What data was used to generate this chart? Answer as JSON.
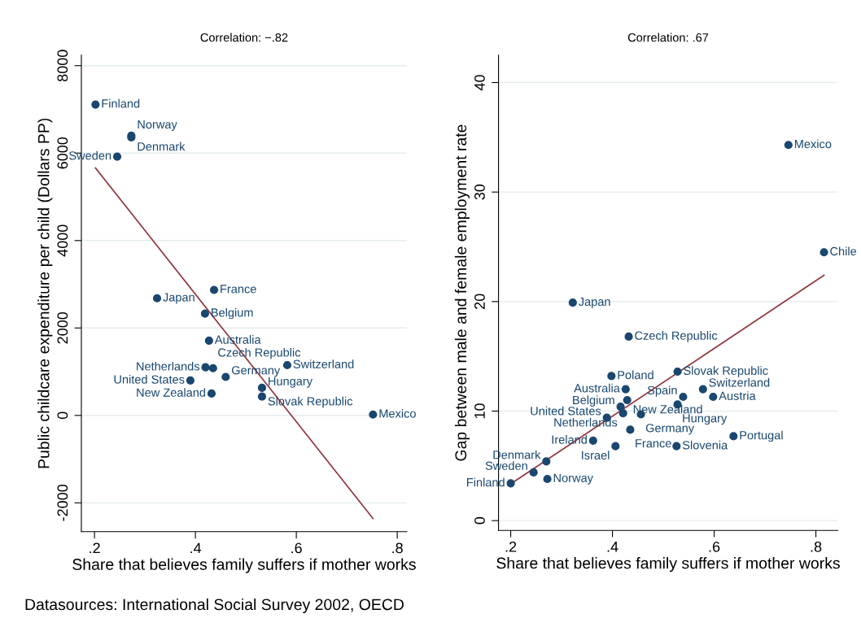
{
  "chart_data": [
    {
      "type": "scatter",
      "title": "Correlation: −.82",
      "xlabel": "Share that believes family suffers if mother works",
      "ylabel": "Public childcare expenditure per child (Dollars PP)",
      "xlim": [
        0.174,
        0.819
      ],
      "ylim": [
        -2660,
        8240
      ],
      "xticks": [
        {
          "value": 0.2,
          "label": ".2"
        },
        {
          "value": 0.4,
          "label": ".4"
        },
        {
          "value": 0.6,
          "label": ".6"
        },
        {
          "value": 0.8,
          "label": ".8"
        }
      ],
      "yticks": [
        -2000,
        0,
        2000,
        4000,
        6000,
        8000
      ],
      "grid": "y",
      "legend": false,
      "annotations": [
        "Datasources: International Social Survey 2002, OECD"
      ],
      "series": [
        {
          "marker": "circle",
          "color": "#1a476f",
          "x": [
            0.202,
            0.273,
            0.273,
            0.245,
            0.324,
            0.437,
            0.419,
            0.427,
            0.42,
            0.435,
            0.582,
            0.39,
            0.46,
            0.532,
            0.532,
            0.432,
            0.752
          ],
          "values": [
            7110,
            6400,
            6360,
            5920,
            2680,
            2870,
            2330,
            1710,
            1100,
            1080,
            1150,
            800,
            880,
            630,
            430,
            500,
            20
          ],
          "value_labels": [
            "Finland",
            "Norway",
            "Denmark",
            "Sweden",
            "Japan",
            "France",
            "Belgium",
            "Australia",
            "Netherlands",
            "Czech Republic",
            "Switzerland",
            "United States",
            "Germany",
            "Hungary",
            "Slovak Republic",
            "New Zealand",
            "Mexico"
          ]
        },
        {
          "type": "line",
          "color": "#90353b",
          "x": [
            0.202,
            0.752
          ],
          "values": [
            5660,
            -2360
          ]
        }
      ]
    },
    {
      "type": "scatter",
      "title": "Correlation: .67",
      "xlabel": "Share that believes family suffers if mother works",
      "ylabel": "Gap between male and female employment rate",
      "xlim": [
        0.176,
        0.843
      ],
      "ylim": [
        -0.9,
        42.5
      ],
      "xticks": [
        {
          "value": 0.2,
          "label": ".2"
        },
        {
          "value": 0.4,
          "label": ".4"
        },
        {
          "value": 0.6,
          "label": ".6"
        },
        {
          "value": 0.8,
          "label": ".8"
        }
      ],
      "yticks": [
        0,
        10,
        20,
        30,
        40
      ],
      "grid": "y",
      "legend": false,
      "series": [
        {
          "marker": "circle",
          "color": "#1a476f",
          "x": [
            0.746,
            0.816,
            0.322,
            0.432,
            0.528,
            0.398,
            0.578,
            0.426,
            0.539,
            0.598,
            0.429,
            0.528,
            0.416,
            0.421,
            0.456,
            0.389,
            0.435,
            0.362,
            0.406,
            0.526,
            0.638,
            0.27,
            0.245,
            0.272,
            0.2
          ],
          "values": [
            34.3,
            24.5,
            19.9,
            16.8,
            13.6,
            13.2,
            12.0,
            12.0,
            11.3,
            11.3,
            11.0,
            10.6,
            10.4,
            9.8,
            9.7,
            9.4,
            8.3,
            7.3,
            6.8,
            6.8,
            7.7,
            5.4,
            4.4,
            3.8,
            3.4
          ],
          "value_labels": [
            "Mexico",
            "Chile",
            "Japan",
            "Czech Republic",
            "Slovak Republic",
            "Poland",
            "Switzerland",
            "Australia",
            "Spain",
            "Austria",
            "New Zealand",
            "Hungary",
            "Belgium",
            "Netherlands",
            "Germany",
            "United States",
            "France",
            "Ireland",
            "Israel",
            "Slovenia",
            "Portugal",
            "Denmark",
            "Sweden",
            "Norway",
            "Finland"
          ]
        },
        {
          "type": "line",
          "color": "#90353b",
          "x": [
            0.2,
            0.816
          ],
          "values": [
            3.35,
            22.4
          ]
        }
      ]
    }
  ]
}
